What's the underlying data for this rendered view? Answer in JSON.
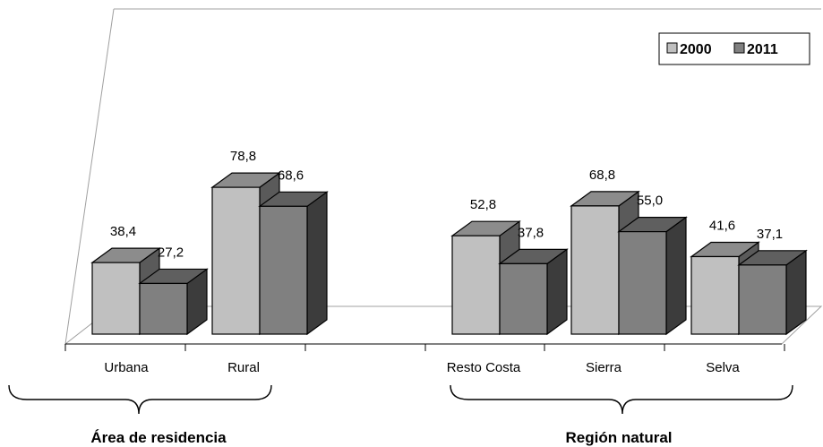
{
  "chart_data": {
    "type": "bar",
    "categories": [
      "Urbana",
      "Rural",
      "Resto Costa",
      "Sierra",
      "Selva"
    ],
    "groups": [
      {
        "label": "Área de residencia",
        "categories": [
          "Urbana",
          "Rural"
        ]
      },
      {
        "label": "Región natural",
        "categories": [
          "Resto Costa",
          "Sierra",
          "Selva"
        ]
      }
    ],
    "series": [
      {
        "name": "2000",
        "values": [
          38.4,
          78.8,
          52.8,
          68.8,
          41.6
        ],
        "labels": [
          "38,4",
          "78,8",
          "52,8",
          "68,8",
          "41,6"
        ],
        "color": "#c0c0c0"
      },
      {
        "name": "2011",
        "values": [
          27.2,
          68.6,
          37.8,
          55.0,
          37.1
        ],
        "labels": [
          "27,2",
          "68,6",
          "37,8",
          "55,0",
          "37,1"
        ],
        "color": "#808080"
      }
    ],
    "ylim": [
      0,
      100
    ],
    "grid": false,
    "legend": "top-right",
    "style": "3d-clustered-column"
  },
  "colors": {
    "series_2000_front": "#c0c0c0",
    "series_2000_side": "#5a5a5a",
    "series_2000_top": "#8c8c8c",
    "series_2011_front": "#808080",
    "series_2011_side": "#3c3c3c",
    "series_2011_top": "#5f5f5f"
  }
}
